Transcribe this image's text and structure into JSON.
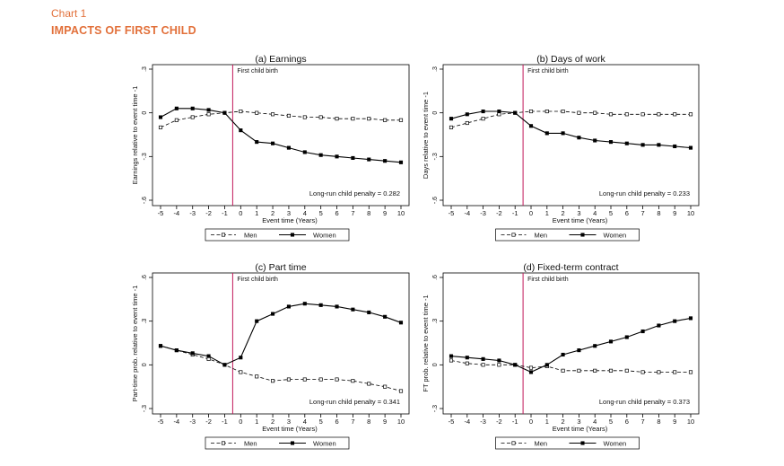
{
  "header": {
    "kicker": "Chart 1",
    "title": "IMPACTS OF FIRST CHILD"
  },
  "colors": {
    "accent": "#e2703a",
    "event_line": "#c2185b",
    "series": "#000000"
  },
  "chart_data": [
    {
      "type": "line",
      "title": "(a) Earnings",
      "xlabel": "Event time (Years)",
      "ylabel": "Earnings relative to event time -1",
      "x": [
        -5,
        -4,
        -3,
        -2,
        -1,
        0,
        1,
        2,
        3,
        4,
        5,
        6,
        7,
        8,
        9,
        10
      ],
      "xlim": [
        -5,
        10
      ],
      "ylim": [
        -0.6,
        0.3
      ],
      "yticks": [
        0.3,
        0,
        -0.3,
        -0.6
      ],
      "ytick_labels": [
        ".3",
        "0",
        "-.3",
        "-.6"
      ],
      "event_label": "First child birth",
      "penalty_text": "Long-run child penalty = 0.282",
      "legend": [
        "Men",
        "Women"
      ],
      "series": [
        {
          "name": "Men",
          "style": "dashed-hollow",
          "values": [
            -0.1,
            -0.05,
            -0.03,
            -0.01,
            0,
            0.01,
            0.0,
            -0.01,
            -0.02,
            -0.03,
            -0.03,
            -0.04,
            -0.04,
            -0.04,
            -0.05,
            -0.05
          ]
        },
        {
          "name": "Women",
          "style": "solid-filled",
          "values": [
            -0.03,
            0.03,
            0.03,
            0.02,
            0,
            -0.12,
            -0.2,
            -0.21,
            -0.24,
            -0.27,
            -0.29,
            -0.3,
            -0.31,
            -0.32,
            -0.33,
            -0.34
          ]
        }
      ]
    },
    {
      "type": "line",
      "title": "(b) Days of work",
      "xlabel": "Event time (Years)",
      "ylabel": "Days relative to event time -1",
      "x": [
        -5,
        -4,
        -3,
        -2,
        -1,
        0,
        1,
        2,
        3,
        4,
        5,
        6,
        7,
        8,
        9,
        10
      ],
      "xlim": [
        -5,
        10
      ],
      "ylim": [
        -0.6,
        0.3
      ],
      "yticks": [
        0.3,
        0,
        -0.3,
        -0.6
      ],
      "ytick_labels": [
        ".3",
        "0",
        "-.3",
        "-.6"
      ],
      "event_label": "First child birth",
      "penalty_text": "Long-run child penalty = 0.233",
      "legend": [
        "Men",
        "Women"
      ],
      "series": [
        {
          "name": "Men",
          "style": "dashed-hollow",
          "values": [
            -0.1,
            -0.07,
            -0.04,
            -0.01,
            0,
            0.01,
            0.01,
            0.01,
            0.0,
            0.0,
            -0.01,
            -0.01,
            -0.01,
            -0.01,
            -0.01,
            -0.01
          ]
        },
        {
          "name": "Women",
          "style": "solid-filled",
          "values": [
            -0.04,
            -0.01,
            0.01,
            0.01,
            0,
            -0.09,
            -0.14,
            -0.14,
            -0.17,
            -0.19,
            -0.2,
            -0.21,
            -0.22,
            -0.22,
            -0.23,
            -0.24
          ]
        }
      ]
    },
    {
      "type": "line",
      "title": "(c) Part time",
      "xlabel": "Event time (Years)",
      "ylabel": "Part-time prob. relative to event time -1",
      "x": [
        -5,
        -4,
        -3,
        -2,
        -1,
        0,
        1,
        2,
        3,
        4,
        5,
        6,
        7,
        8,
        9,
        10
      ],
      "xlim": [
        -5,
        10
      ],
      "ylim": [
        -0.3,
        0.6
      ],
      "yticks": [
        0.6,
        0.3,
        0,
        -0.3
      ],
      "ytick_labels": [
        ".6",
        ".3",
        "0",
        "-.3"
      ],
      "event_label": "First child birth",
      "penalty_text": "Long-run child penalty = 0.341",
      "legend": [
        "Men",
        "Women"
      ],
      "series": [
        {
          "name": "Men",
          "style": "dashed-hollow",
          "values": [
            0.13,
            0.1,
            0.07,
            0.04,
            0,
            -0.05,
            -0.08,
            -0.11,
            -0.1,
            -0.1,
            -0.1,
            -0.1,
            -0.11,
            -0.13,
            -0.15,
            -0.18
          ]
        },
        {
          "name": "Women",
          "style": "solid-filled",
          "values": [
            0.13,
            0.1,
            0.08,
            0.06,
            0,
            0.05,
            0.3,
            0.35,
            0.4,
            0.42,
            0.41,
            0.4,
            0.38,
            0.36,
            0.33,
            0.29
          ]
        }
      ]
    },
    {
      "type": "line",
      "title": "(d) Fixed-term contract",
      "xlabel": "Event time (Years)",
      "ylabel": "FT prob. relative to event time -1",
      "x": [
        -5,
        -4,
        -3,
        -2,
        -1,
        0,
        1,
        2,
        3,
        4,
        5,
        6,
        7,
        8,
        9,
        10
      ],
      "xlim": [
        -5,
        10
      ],
      "ylim": [
        -0.3,
        0.6
      ],
      "yticks": [
        0.6,
        0.3,
        0,
        -0.3
      ],
      "ytick_labels": [
        ".6",
        ".3",
        "0",
        "-.3"
      ],
      "event_label": "First child birth",
      "penalty_text": "Long-run child penalty = 0.373",
      "legend": [
        "Men",
        "Women"
      ],
      "series": [
        {
          "name": "Men",
          "style": "dashed-hollow",
          "values": [
            0.03,
            0.01,
            0.0,
            0.0,
            0,
            -0.02,
            -0.01,
            -0.04,
            -0.04,
            -0.04,
            -0.04,
            -0.04,
            -0.05,
            -0.05,
            -0.05,
            -0.05
          ]
        },
        {
          "name": "Women",
          "style": "solid-filled",
          "values": [
            0.06,
            0.05,
            0.04,
            0.03,
            0,
            -0.05,
            0.0,
            0.07,
            0.1,
            0.13,
            0.16,
            0.19,
            0.23,
            0.27,
            0.3,
            0.32
          ]
        }
      ]
    }
  ]
}
